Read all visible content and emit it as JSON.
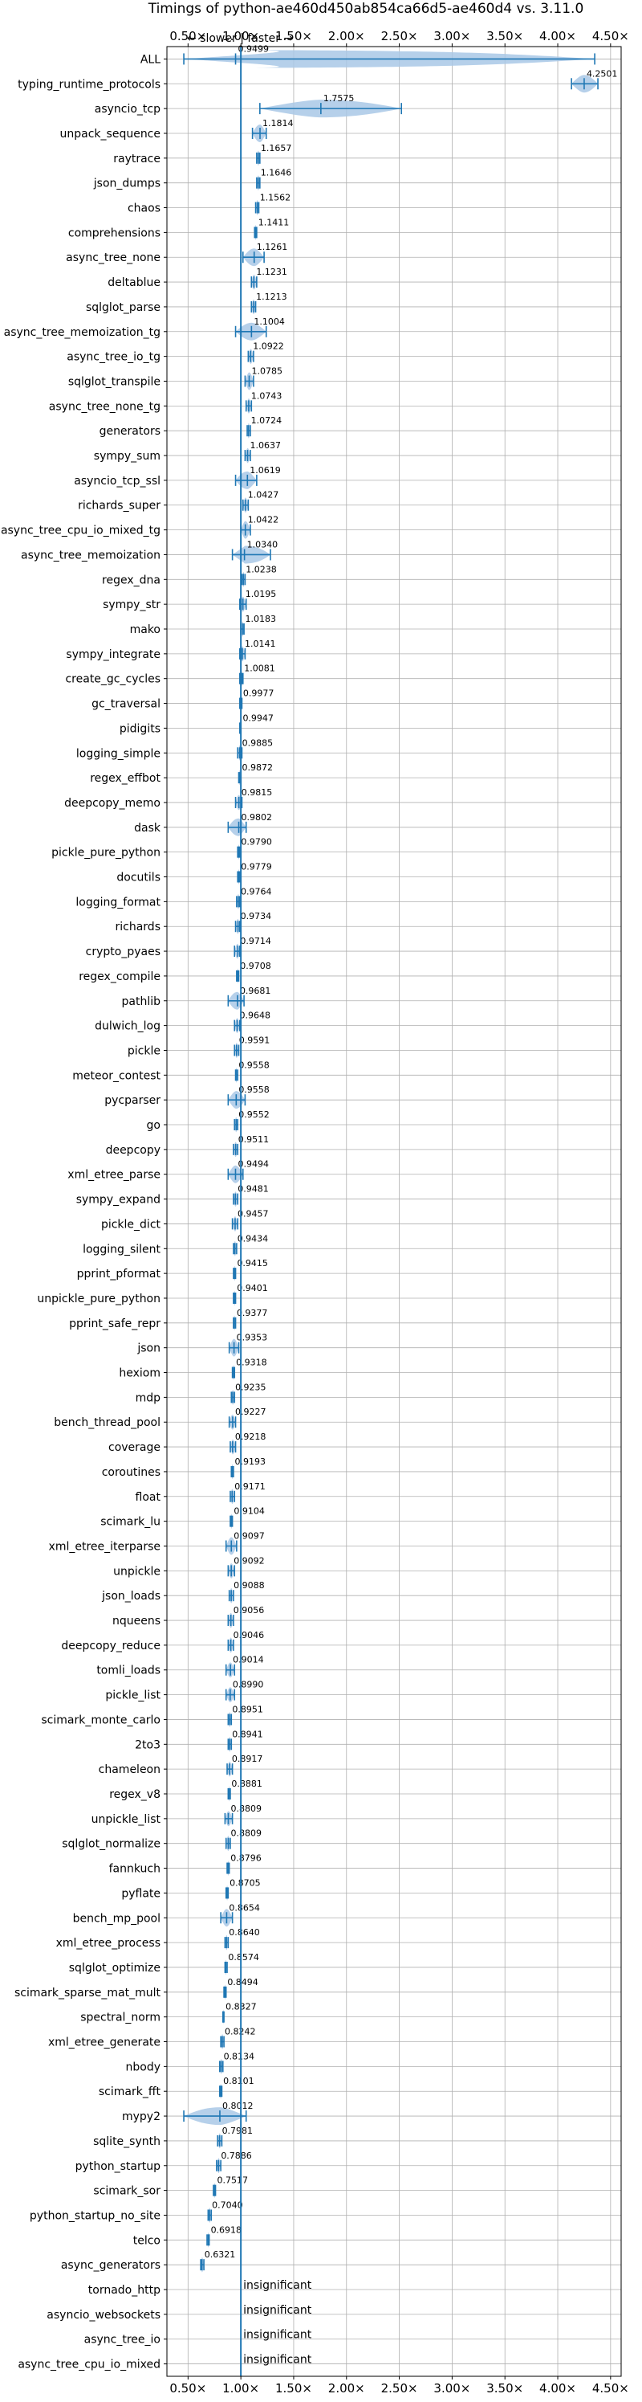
{
  "chart_data": {
    "type": "violin",
    "title": "Timings of python-ae460d450ab854ca66d5-ae460d4 vs. 3.11.0",
    "direction_label": "← slower | faster →",
    "xlim": [
      0.3,
      4.6
    ],
    "x_ticks": [
      "0.50×",
      "1.00×",
      "1.50×",
      "2.00×",
      "2.50×",
      "3.00×",
      "3.50×",
      "4.00×",
      "4.50×"
    ],
    "x_tick_values": [
      0.5,
      1.0,
      1.5,
      2.0,
      2.5,
      3.0,
      3.5,
      4.0,
      4.5
    ],
    "reference_line": 1.0,
    "grid": true,
    "colors": {
      "violin": "#a9c8e6",
      "line": "#1f77b4",
      "grid": "#b0b0b0"
    },
    "series": [
      {
        "label": "ALL",
        "value": 0.9499,
        "value_label": "0.9499",
        "min": 0.46,
        "max": 4.35
      },
      {
        "label": "typing_runtime_protocols",
        "value": 4.2501,
        "value_label": "4.2501",
        "min": 4.13,
        "max": 4.38
      },
      {
        "label": "asyncio_tcp",
        "value": 1.7575,
        "value_label": "1.7575",
        "min": 1.18,
        "max": 2.52
      },
      {
        "label": "unpack_sequence",
        "value": 1.1814,
        "value_label": "1.1814",
        "min": 1.11,
        "max": 1.24
      },
      {
        "label": "raytrace",
        "value": 1.1657,
        "value_label": "1.1657",
        "min": 1.15,
        "max": 1.18
      },
      {
        "label": "json_dumps",
        "value": 1.1646,
        "value_label": "1.1646",
        "min": 1.15,
        "max": 1.18
      },
      {
        "label": "chaos",
        "value": 1.1562,
        "value_label": "1.1562",
        "min": 1.14,
        "max": 1.17
      },
      {
        "label": "comprehensions",
        "value": 1.1411,
        "value_label": "1.1411",
        "min": 1.13,
        "max": 1.15
      },
      {
        "label": "async_tree_none",
        "value": 1.1261,
        "value_label": "1.1261",
        "min": 1.02,
        "max": 1.22
      },
      {
        "label": "deltablue",
        "value": 1.1231,
        "value_label": "1.1231",
        "min": 1.1,
        "max": 1.15
      },
      {
        "label": "sqlglot_parse",
        "value": 1.1213,
        "value_label": "1.1213",
        "min": 1.1,
        "max": 1.14
      },
      {
        "label": "async_tree_memoization_tg",
        "value": 1.1004,
        "value_label": "1.1004",
        "min": 0.95,
        "max": 1.24
      },
      {
        "label": "async_tree_io_tg",
        "value": 1.0922,
        "value_label": "1.0922",
        "min": 1.07,
        "max": 1.12
      },
      {
        "label": "sqlglot_transpile",
        "value": 1.0785,
        "value_label": "1.0785",
        "min": 1.04,
        "max": 1.12
      },
      {
        "label": "async_tree_none_tg",
        "value": 1.0743,
        "value_label": "1.0743",
        "min": 1.05,
        "max": 1.1
      },
      {
        "label": "generators",
        "value": 1.0724,
        "value_label": "1.0724",
        "min": 1.06,
        "max": 1.09
      },
      {
        "label": "sympy_sum",
        "value": 1.0637,
        "value_label": "1.0637",
        "min": 1.04,
        "max": 1.09
      },
      {
        "label": "asyncio_tcp_ssl",
        "value": 1.0619,
        "value_label": "1.0619",
        "min": 0.95,
        "max": 1.15
      },
      {
        "label": "richards_super",
        "value": 1.0427,
        "value_label": "1.0427",
        "min": 1.02,
        "max": 1.07
      },
      {
        "label": "async_tree_cpu_io_mixed_tg",
        "value": 1.0422,
        "value_label": "1.0422",
        "min": 1.0,
        "max": 1.09
      },
      {
        "label": "async_tree_memoization",
        "value": 1.034,
        "value_label": "1.0340",
        "min": 0.92,
        "max": 1.28
      },
      {
        "label": "regex_dna",
        "value": 1.0238,
        "value_label": "1.0238",
        "min": 1.01,
        "max": 1.04
      },
      {
        "label": "sympy_str",
        "value": 1.0195,
        "value_label": "1.0195",
        "min": 0.99,
        "max": 1.05
      },
      {
        "label": "mako",
        "value": 1.0183,
        "value_label": "1.0183",
        "min": 1.0,
        "max": 1.03
      },
      {
        "label": "sympy_integrate",
        "value": 1.0141,
        "value_label": "1.0141",
        "min": 0.99,
        "max": 1.04
      },
      {
        "label": "create_gc_cycles",
        "value": 1.0081,
        "value_label": "1.0081",
        "min": 0.99,
        "max": 1.02
      },
      {
        "label": "gc_traversal",
        "value": 0.9977,
        "value_label": "0.9977",
        "min": 0.99,
        "max": 1.01
      },
      {
        "label": "pidigits",
        "value": 0.9947,
        "value_label": "0.9947",
        "min": 0.99,
        "max": 1.0
      },
      {
        "label": "logging_simple",
        "value": 0.9885,
        "value_label": "0.9885",
        "min": 0.97,
        "max": 1.01
      },
      {
        "label": "regex_effbot",
        "value": 0.9872,
        "value_label": "0.9872",
        "min": 0.98,
        "max": 1.0
      },
      {
        "label": "deepcopy_memo",
        "value": 0.9815,
        "value_label": "0.9815",
        "min": 0.95,
        "max": 1.01
      },
      {
        "label": "dask",
        "value": 0.9802,
        "value_label": "0.9802",
        "min": 0.88,
        "max": 1.05
      },
      {
        "label": "pickle_pure_python",
        "value": 0.979,
        "value_label": "0.9790",
        "min": 0.97,
        "max": 0.99
      },
      {
        "label": "docutils",
        "value": 0.9779,
        "value_label": "0.9779",
        "min": 0.97,
        "max": 0.99
      },
      {
        "label": "logging_format",
        "value": 0.9764,
        "value_label": "0.9764",
        "min": 0.96,
        "max": 0.99
      },
      {
        "label": "richards",
        "value": 0.9734,
        "value_label": "0.9734",
        "min": 0.95,
        "max": 0.99
      },
      {
        "label": "crypto_pyaes",
        "value": 0.9714,
        "value_label": "0.9714",
        "min": 0.94,
        "max": 0.99
      },
      {
        "label": "regex_compile",
        "value": 0.9708,
        "value_label": "0.9708",
        "min": 0.96,
        "max": 0.98
      },
      {
        "label": "pathlib",
        "value": 0.9681,
        "value_label": "0.9681",
        "min": 0.88,
        "max": 1.03
      },
      {
        "label": "dulwich_log",
        "value": 0.9648,
        "value_label": "0.9648",
        "min": 0.94,
        "max": 0.99
      },
      {
        "label": "pickle",
        "value": 0.9591,
        "value_label": "0.9591",
        "min": 0.94,
        "max": 0.98
      },
      {
        "label": "meteor_contest",
        "value": 0.9558,
        "value_label": "0.9558",
        "min": 0.95,
        "max": 0.97
      },
      {
        "label": "pycparser",
        "value": 0.9558,
        "value_label": "0.9558",
        "min": 0.88,
        "max": 1.04
      },
      {
        "label": "go",
        "value": 0.9552,
        "value_label": "0.9552",
        "min": 0.94,
        "max": 0.97
      },
      {
        "label": "deepcopy",
        "value": 0.9511,
        "value_label": "0.9511",
        "min": 0.93,
        "max": 0.97
      },
      {
        "label": "xml_etree_parse",
        "value": 0.9494,
        "value_label": "0.9494",
        "min": 0.88,
        "max": 1.02
      },
      {
        "label": "sympy_expand",
        "value": 0.9481,
        "value_label": "0.9481",
        "min": 0.93,
        "max": 0.97
      },
      {
        "label": "pickle_dict",
        "value": 0.9457,
        "value_label": "0.9457",
        "min": 0.92,
        "max": 0.97
      },
      {
        "label": "logging_silent",
        "value": 0.9434,
        "value_label": "0.9434",
        "min": 0.93,
        "max": 0.96
      },
      {
        "label": "pprint_pformat",
        "value": 0.9415,
        "value_label": "0.9415",
        "min": 0.93,
        "max": 0.95
      },
      {
        "label": "unpickle_pure_python",
        "value": 0.9401,
        "value_label": "0.9401",
        "min": 0.93,
        "max": 0.95
      },
      {
        "label": "pprint_safe_repr",
        "value": 0.9377,
        "value_label": "0.9377",
        "min": 0.93,
        "max": 0.95
      },
      {
        "label": "json",
        "value": 0.9353,
        "value_label": "0.9353",
        "min": 0.89,
        "max": 0.98
      },
      {
        "label": "hexiom",
        "value": 0.9318,
        "value_label": "0.9318",
        "min": 0.92,
        "max": 0.94
      },
      {
        "label": "mdp",
        "value": 0.9235,
        "value_label": "0.9235",
        "min": 0.91,
        "max": 0.94
      },
      {
        "label": "bench_thread_pool",
        "value": 0.9227,
        "value_label": "0.9227",
        "min": 0.89,
        "max": 0.95
      },
      {
        "label": "coverage",
        "value": 0.9218,
        "value_label": "0.9218",
        "min": 0.9,
        "max": 0.95
      },
      {
        "label": "coroutines",
        "value": 0.9193,
        "value_label": "0.9193",
        "min": 0.91,
        "max": 0.93
      },
      {
        "label": "float",
        "value": 0.9171,
        "value_label": "0.9171",
        "min": 0.9,
        "max": 0.94
      },
      {
        "label": "scimark_lu",
        "value": 0.9104,
        "value_label": "0.9104",
        "min": 0.9,
        "max": 0.92
      },
      {
        "label": "xml_etree_iterparse",
        "value": 0.9097,
        "value_label": "0.9097",
        "min": 0.86,
        "max": 0.96
      },
      {
        "label": "unpickle",
        "value": 0.9092,
        "value_label": "0.9092",
        "min": 0.88,
        "max": 0.94
      },
      {
        "label": "json_loads",
        "value": 0.9088,
        "value_label": "0.9088",
        "min": 0.89,
        "max": 0.93
      },
      {
        "label": "nqueens",
        "value": 0.9056,
        "value_label": "0.9056",
        "min": 0.88,
        "max": 0.93
      },
      {
        "label": "deepcopy_reduce",
        "value": 0.9046,
        "value_label": "0.9046",
        "min": 0.88,
        "max": 0.93
      },
      {
        "label": "tomli_loads",
        "value": 0.9014,
        "value_label": "0.9014",
        "min": 0.86,
        "max": 0.94
      },
      {
        "label": "pickle_list",
        "value": 0.899,
        "value_label": "0.8990",
        "min": 0.86,
        "max": 0.94
      },
      {
        "label": "scimark_monte_carlo",
        "value": 0.8951,
        "value_label": "0.8951",
        "min": 0.88,
        "max": 0.91
      },
      {
        "label": "2to3",
        "value": 0.8941,
        "value_label": "0.8941",
        "min": 0.88,
        "max": 0.91
      },
      {
        "label": "chameleon",
        "value": 0.8917,
        "value_label": "0.8917",
        "min": 0.87,
        "max": 0.92
      },
      {
        "label": "regex_v8",
        "value": 0.8881,
        "value_label": "0.8881",
        "min": 0.88,
        "max": 0.9
      },
      {
        "label": "unpickle_list",
        "value": 0.8809,
        "value_label": "0.8809",
        "min": 0.85,
        "max": 0.92
      },
      {
        "label": "sqlglot_normalize",
        "value": 0.8809,
        "value_label": "0.8809",
        "min": 0.86,
        "max": 0.9
      },
      {
        "label": "fannkuch",
        "value": 0.8796,
        "value_label": "0.8796",
        "min": 0.87,
        "max": 0.89
      },
      {
        "label": "pyflate",
        "value": 0.8705,
        "value_label": "0.8705",
        "min": 0.86,
        "max": 0.88
      },
      {
        "label": "bench_mp_pool",
        "value": 0.8654,
        "value_label": "0.8654",
        "min": 0.81,
        "max": 0.92
      },
      {
        "label": "xml_etree_process",
        "value": 0.864,
        "value_label": "0.8640",
        "min": 0.85,
        "max": 0.88
      },
      {
        "label": "sqlglot_optimize",
        "value": 0.8574,
        "value_label": "0.8574",
        "min": 0.85,
        "max": 0.87
      },
      {
        "label": "scimark_sparse_mat_mult",
        "value": 0.8494,
        "value_label": "0.8494",
        "min": 0.84,
        "max": 0.86
      },
      {
        "label": "spectral_norm",
        "value": 0.8327,
        "value_label": "0.8327",
        "min": 0.83,
        "max": 0.84
      },
      {
        "label": "xml_etree_generate",
        "value": 0.8242,
        "value_label": "0.8242",
        "min": 0.81,
        "max": 0.84
      },
      {
        "label": "nbody",
        "value": 0.8134,
        "value_label": "0.8134",
        "min": 0.8,
        "max": 0.83
      },
      {
        "label": "scimark_fft",
        "value": 0.8101,
        "value_label": "0.8101",
        "min": 0.8,
        "max": 0.82
      },
      {
        "label": "mypy2",
        "value": 0.8012,
        "value_label": "0.8012",
        "min": 0.46,
        "max": 1.05
      },
      {
        "label": "sqlite_synth",
        "value": 0.7981,
        "value_label": "0.7981",
        "min": 0.78,
        "max": 0.82
      },
      {
        "label": "python_startup",
        "value": 0.7886,
        "value_label": "0.7886",
        "min": 0.77,
        "max": 0.81
      },
      {
        "label": "scimark_sor",
        "value": 0.7517,
        "value_label": "0.7517",
        "min": 0.74,
        "max": 0.76
      },
      {
        "label": "python_startup_no_site",
        "value": 0.704,
        "value_label": "0.7040",
        "min": 0.69,
        "max": 0.72
      },
      {
        "label": "telco",
        "value": 0.6918,
        "value_label": "0.6918",
        "min": 0.68,
        "max": 0.7
      },
      {
        "label": "async_generators",
        "value": 0.6321,
        "value_label": "0.6321",
        "min": 0.62,
        "max": 0.65
      },
      {
        "label": "tornado_http",
        "value": null,
        "value_label": "insignificant",
        "min": null,
        "max": null
      },
      {
        "label": "asyncio_websockets",
        "value": null,
        "value_label": "insignificant",
        "min": null,
        "max": null
      },
      {
        "label": "async_tree_io",
        "value": null,
        "value_label": "insignificant",
        "min": null,
        "max": null
      },
      {
        "label": "async_tree_cpu_io_mixed",
        "value": null,
        "value_label": "insignificant",
        "min": null,
        "max": null
      }
    ]
  }
}
